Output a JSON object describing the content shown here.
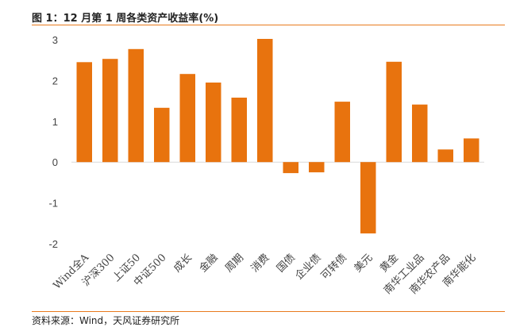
{
  "title": "图 1：12 月第 1 周各类资产收益率(%)",
  "source": "资料来源：Wind，天风证券研究所",
  "colors": {
    "bar": "#e8730e",
    "rule": "#e87a1e",
    "zero_line": "#d9d9d9"
  },
  "chart_data": {
    "type": "bar",
    "title": "图 1：12 月第 1 周各类资产收益率(%)",
    "xlabel": "",
    "ylabel": "",
    "ylim": [
      -2,
      3
    ],
    "yticks": [
      3,
      2,
      1,
      0,
      -1,
      -2
    ],
    "grid": false,
    "legend": "none",
    "categories": [
      "Wind全A",
      "沪深300",
      "上证50",
      "中证500",
      "成长",
      "金融",
      "周期",
      "消费",
      "国债",
      "企业债",
      "可转债",
      "美元",
      "黄金",
      "南华工业品",
      "南华农产品",
      "南华能化"
    ],
    "values": [
      2.45,
      2.53,
      2.77,
      1.33,
      2.16,
      1.95,
      1.58,
      3.02,
      -0.27,
      -0.25,
      1.48,
      -1.75,
      2.46,
      1.41,
      0.31,
      0.58
    ]
  }
}
